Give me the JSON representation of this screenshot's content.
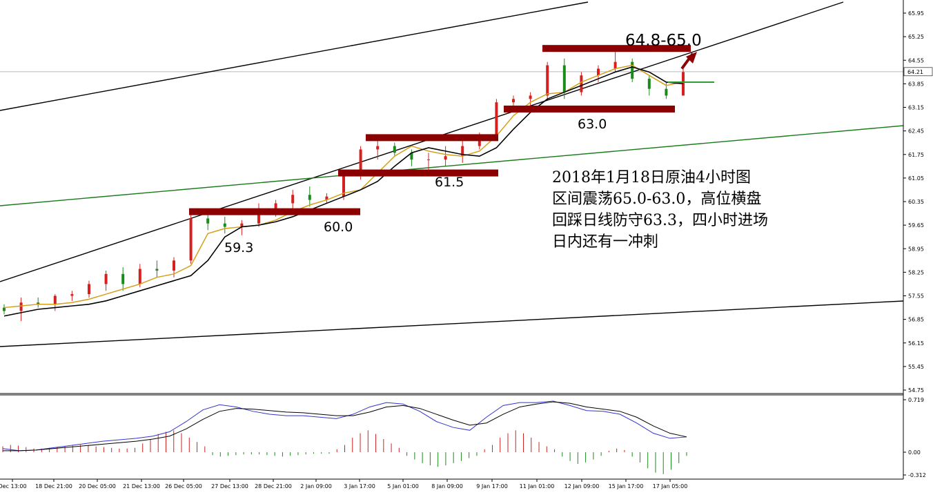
{
  "chart_data": {
    "type": "candlestick",
    "title": "",
    "main_panel": {
      "y_ticks": [
        "65.95",
        "65.25",
        "64.55",
        "63.85",
        "63.15",
        "62.45",
        "61.75",
        "61.05",
        "60.35",
        "59.65",
        "58.95",
        "58.25",
        "57.55",
        "56.85",
        "56.15",
        "55.45",
        "54.75"
      ],
      "ylim": [
        54.6,
        66.2
      ],
      "current_price": "64.21",
      "moving_averages": [
        {
          "color": "#d4a017",
          "values": [
            57.2,
            57.25,
            57.3,
            57.3,
            57.35,
            57.45,
            57.6,
            57.75,
            57.9,
            58.1,
            58.2,
            58.45,
            59.4,
            59.55,
            59.6,
            59.65,
            59.8,
            60.05,
            60.25,
            60.4,
            60.6,
            60.7,
            61.2,
            61.7,
            62.0,
            61.85,
            61.75,
            61.7,
            61.85,
            62.3,
            62.9,
            63.3,
            63.55,
            63.6,
            63.9,
            64.1,
            64.3,
            64.4,
            64.1,
            63.8,
            63.9
          ]
        },
        {
          "color": "#000000",
          "values": [
            56.95,
            57.05,
            57.15,
            57.2,
            57.25,
            57.3,
            57.4,
            57.55,
            57.7,
            57.85,
            58.0,
            58.15,
            58.6,
            59.3,
            59.6,
            59.65,
            59.75,
            59.9,
            60.1,
            60.3,
            60.5,
            60.7,
            60.95,
            61.4,
            61.8,
            61.95,
            61.85,
            61.75,
            61.7,
            61.95,
            62.5,
            63.0,
            63.4,
            63.6,
            63.8,
            64.0,
            64.2,
            64.35,
            64.2,
            63.9,
            63.85
          ]
        }
      ],
      "candles": [
        [
          57.2,
          57.3,
          57.0,
          57.1
        ],
        [
          57.1,
          57.5,
          56.8,
          57.35
        ],
        [
          57.35,
          57.5,
          57.2,
          57.3
        ],
        [
          57.3,
          57.6,
          57.1,
          57.55
        ],
        [
          57.55,
          57.7,
          57.4,
          57.6
        ],
        [
          57.6,
          58.0,
          57.5,
          57.9
        ],
        [
          57.9,
          58.3,
          57.7,
          58.2
        ],
        [
          58.2,
          58.4,
          57.7,
          57.9
        ],
        [
          57.9,
          58.5,
          57.8,
          58.35
        ],
        [
          58.35,
          58.6,
          58.1,
          58.3
        ],
        [
          58.3,
          58.7,
          58.1,
          58.6
        ],
        [
          58.6,
          59.95,
          58.5,
          59.85
        ],
        [
          59.85,
          60.0,
          59.5,
          59.7
        ],
        [
          59.7,
          59.9,
          59.4,
          59.6
        ],
        [
          59.6,
          59.8,
          59.35,
          59.7
        ],
        [
          59.7,
          60.3,
          59.6,
          60.15
        ],
        [
          60.15,
          60.4,
          59.9,
          60.3
        ],
        [
          60.3,
          60.7,
          60.1,
          60.55
        ],
        [
          60.55,
          60.8,
          60.2,
          60.4
        ],
        [
          60.4,
          60.6,
          60.3,
          60.5
        ],
        [
          60.5,
          61.2,
          60.4,
          61.1
        ],
        [
          61.1,
          62.0,
          61.0,
          61.9
        ],
        [
          61.9,
          62.2,
          61.6,
          62.0
        ],
        [
          62.0,
          62.1,
          61.7,
          61.8
        ],
        [
          61.8,
          61.9,
          61.4,
          61.6
        ],
        [
          61.6,
          61.8,
          61.3,
          61.6
        ],
        [
          61.6,
          62.0,
          61.4,
          61.7
        ],
        [
          61.7,
          62.2,
          61.5,
          62.0
        ],
        [
          62.0,
          62.4,
          61.9,
          62.3
        ],
        [
          62.3,
          63.4,
          62.2,
          63.3
        ],
        [
          63.3,
          63.5,
          63.0,
          63.4
        ],
        [
          63.4,
          63.6,
          63.2,
          63.5
        ],
        [
          63.5,
          64.5,
          63.4,
          64.4
        ],
        [
          64.4,
          64.6,
          63.4,
          63.6
        ],
        [
          63.6,
          64.2,
          63.5,
          64.1
        ],
        [
          64.1,
          64.4,
          63.9,
          64.3
        ],
        [
          64.3,
          64.8,
          64.2,
          64.5
        ],
        [
          64.5,
          64.6,
          63.9,
          64.0
        ],
        [
          64.0,
          64.1,
          63.5,
          63.7
        ],
        [
          63.7,
          63.9,
          63.4,
          63.5
        ],
        [
          63.5,
          64.3,
          63.5,
          64.2
        ]
      ],
      "annotations": [
        {
          "text": "64.8-65.0",
          "value": 64.9
        },
        {
          "text": "63.0",
          "value": 63.0
        },
        {
          "text": "61.5",
          "value": 61.5
        },
        {
          "text": "60.0",
          "value": 60.0
        },
        {
          "text": "59.3",
          "value": 59.3
        }
      ],
      "note_lines": [
        "2018年1月18日原油4小时图",
        "区间震荡65.0-63.0，高位横盘",
        "回踩日线防守63.3，四小时进场",
        "日内还有一冲刺"
      ]
    },
    "macd_panel": {
      "y_ticks": [
        "0.719",
        "0.00",
        "-0.312"
      ],
      "ylim": [
        -0.35,
        0.74
      ],
      "histogram": [
        0.08,
        0.1,
        0.09,
        0.07,
        0.05,
        0.05,
        0.06,
        0.07,
        0.08,
        0.09,
        0.1,
        0.09,
        0.08,
        0.07,
        0.06,
        0.05,
        0.05,
        0.06,
        0.12,
        0.18,
        0.25,
        0.28,
        0.3,
        0.26,
        0.2,
        0.14,
        0.08,
        -0.04,
        -0.06,
        -0.05,
        -0.04,
        -0.03,
        -0.03,
        -0.03,
        -0.04,
        -0.05,
        -0.06,
        -0.05,
        -0.04,
        -0.03,
        -0.02,
        -0.02,
        -0.02,
        0.04,
        0.1,
        0.2,
        0.26,
        0.3,
        0.25,
        0.18,
        0.12,
        0.06,
        -0.05,
        -0.1,
        -0.15,
        -0.18,
        -0.2,
        -0.18,
        -0.15,
        -0.12,
        -0.08,
        -0.05,
        0.04,
        0.1,
        0.2,
        0.26,
        0.3,
        0.26,
        0.2,
        0.14,
        0.08,
        0.04,
        -0.06,
        -0.12,
        -0.16,
        -0.14,
        -0.1,
        -0.05,
        0.02,
        0.05,
        0.03,
        -0.06,
        -0.14,
        -0.22,
        -0.28,
        -0.3,
        -0.24,
        -0.15,
        -0.05
      ],
      "macd_line": [
        0.05,
        0.02,
        0.03,
        0.06,
        0.09,
        0.12,
        0.15,
        0.17,
        0.19,
        0.22,
        0.28,
        0.42,
        0.58,
        0.65,
        0.62,
        0.56,
        0.52,
        0.5,
        0.5,
        0.48,
        0.46,
        0.52,
        0.62,
        0.68,
        0.66,
        0.56,
        0.42,
        0.34,
        0.3,
        0.48,
        0.64,
        0.68,
        0.68,
        0.7,
        0.64,
        0.57,
        0.56,
        0.52,
        0.4,
        0.26,
        0.19,
        0.21
      ],
      "signal_line": [
        0.02,
        0.02,
        0.03,
        0.05,
        0.07,
        0.09,
        0.11,
        0.13,
        0.15,
        0.18,
        0.22,
        0.32,
        0.45,
        0.56,
        0.6,
        0.59,
        0.57,
        0.55,
        0.54,
        0.52,
        0.5,
        0.5,
        0.55,
        0.62,
        0.64,
        0.6,
        0.52,
        0.44,
        0.37,
        0.4,
        0.52,
        0.62,
        0.66,
        0.69,
        0.67,
        0.62,
        0.59,
        0.56,
        0.48,
        0.36,
        0.26,
        0.21
      ]
    },
    "x_ticks": [
      "Dec 13:00",
      "18 Dec 21:00",
      "20 Dec 05:00",
      "21 Dec 13:00",
      "26 Dec 05:00",
      "27 Dec 13:00",
      "28 Dec 21:00",
      "2 Jan 09:00",
      "3 Jan 17:00",
      "5 Jan 01:00",
      "8 Jan 09:00",
      "9 Jan 17:00",
      "11 Jan 01:00",
      "12 Jan 09:00",
      "15 Jan 17:00",
      "17 Jan 05:00"
    ],
    "colors": {
      "up": "#d62020",
      "down": "#1a8a1a",
      "macd": "#3333cc",
      "signal": "#000000",
      "zone": "#8b0000",
      "green_channel": "#1a7a1a",
      "arrow": "#8b0000"
    },
    "grid": false
  }
}
